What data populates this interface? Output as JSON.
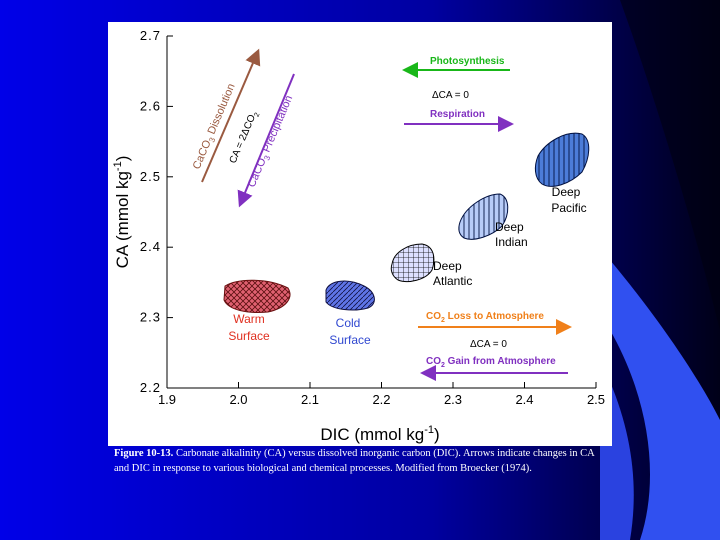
{
  "chart_data": {
    "type": "scatter",
    "xlabel": "DIC (mmol kg",
    "xlabel_sup": "-1",
    "xlabel_end": ")",
    "ylabel": "CA (mmol kg",
    "ylabel_sup": "-1",
    "ylabel_end": ")",
    "xlim": [
      1.9,
      2.5
    ],
    "ylim": [
      2.2,
      2.7
    ],
    "x_ticks": [
      "1.9",
      "2.0",
      "2.1",
      "2.2",
      "2.3",
      "2.4",
      "2.5"
    ],
    "y_ticks": [
      "2.2",
      "2.3",
      "2.4",
      "2.5",
      "2.6",
      "2.7"
    ],
    "water_masses": [
      {
        "label_lines": [
          "Warm",
          "Surface"
        ],
        "x": 1.925,
        "y": 2.322,
        "color": "#e06070",
        "hatch": "cross"
      },
      {
        "label_lines": [
          "Cold",
          "Surface"
        ],
        "x": 2.058,
        "y": 2.314,
        "color": "#5e74e6",
        "hatch": "diag"
      },
      {
        "label_lines": [
          "Deep",
          "Atlantic"
        ],
        "x": 2.277,
        "y": 2.371,
        "color": "#dde0ff",
        "hatch": "grid"
      },
      {
        "label_lines": [
          "Deep",
          "Indian"
        ],
        "x": 2.352,
        "y": 2.427,
        "color": "#b8ccf8",
        "hatch": "vert"
      },
      {
        "label_lines": [
          "Deep",
          "Pacific"
        ],
        "x": 2.435,
        "y": 2.511,
        "color": "#4c7cd8",
        "hatch": "vert"
      }
    ],
    "processes": [
      {
        "label": "Photosynthesis",
        "color": "#19b719",
        "dir": "left"
      },
      {
        "label": "ΔCA = 0",
        "color": "#000000",
        "dir": "none"
      },
      {
        "label": "Respiration",
        "color": "#8030c0",
        "dir": "right"
      },
      {
        "label_main": "CO",
        "label_sub": "2",
        "label_rest": " Loss to Atmosphere",
        "color": "#f0801a",
        "dir": "right"
      },
      {
        "label": "ΔCA = 0",
        "color": "#000000",
        "dir": "none"
      },
      {
        "label_main": "CO",
        "label_sub": "2",
        "label_rest": " Gain from Atmosphere",
        "color": "#8030c0",
        "dir": "left"
      }
    ],
    "diagonal_labels": [
      {
        "main": "CaCO",
        "sub": "3",
        "rest": " Dissolution",
        "color": "#9a5a40"
      },
      {
        "main": "CA = 2ΔCO",
        "sub": "2",
        "rest": "",
        "color": "#000000"
      },
      {
        "main": "CaCO",
        "sub": "3",
        "rest": " Precipitation",
        "color": "#8030c0"
      }
    ]
  },
  "caption": {
    "bold": "Figure 10-13.",
    "text": " Carbonate alkalinity (CA) versus dissolved inorganic carbon (DIC). Arrows indicate changes in CA and DIC in response to various biological and chemical processes. Modified from Broecker (1974)."
  },
  "colors": {
    "slide_bg": "#0000e0",
    "panel_bg": "#ffffff",
    "shape_accent": "#3a5cf0"
  }
}
